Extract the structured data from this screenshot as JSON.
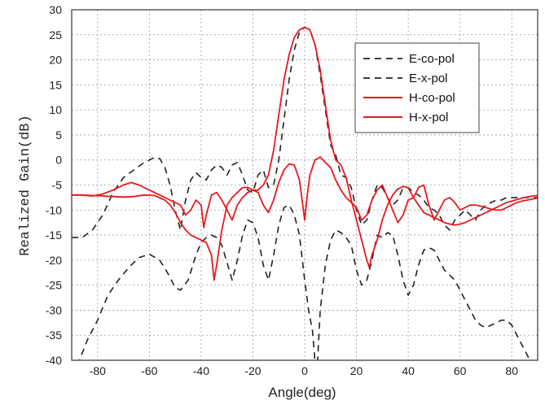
{
  "chart_data": {
    "type": "line",
    "title": "",
    "xlabel": "Angle(deg)",
    "ylabel": "Realized Gain(dB)",
    "xlim": [
      -90,
      90
    ],
    "ylim": [
      -40,
      30
    ],
    "xticks": [
      -80,
      -60,
      -40,
      -20,
      0,
      20,
      40,
      60,
      80
    ],
    "yticks": [
      30,
      25,
      20,
      15,
      10,
      5,
      0,
      -5,
      -10,
      -15,
      -20,
      -25,
      -30,
      -35,
      -40
    ],
    "grid": true,
    "legend_position": "top-right",
    "series": [
      {
        "name": "E-co-pol",
        "color": "#222222",
        "style": "dashed",
        "x": [
          -90,
          -86,
          -82,
          -78,
          -74,
          -70,
          -66,
          -62,
          -58,
          -56,
          -54,
          -52,
          -50,
          -48,
          -46,
          -44,
          -42,
          -40,
          -38,
          -36,
          -34,
          -32,
          -30,
          -28,
          -26,
          -24,
          -22,
          -20,
          -18,
          -16,
          -14,
          -12,
          -10,
          -8,
          -6,
          -4,
          -2,
          0,
          2,
          4,
          6,
          8,
          10,
          12,
          14,
          16,
          18,
          20,
          22,
          24,
          26,
          28,
          30,
          32,
          34,
          36,
          38,
          40,
          42,
          44,
          46,
          48,
          50,
          52,
          54,
          56,
          58,
          60,
          62,
          64,
          66,
          68,
          70,
          72,
          74,
          76,
          78,
          80,
          82,
          84,
          86,
          88,
          90
        ],
        "y": [
          -15.5,
          -15.5,
          -14,
          -11,
          -6.5,
          -3.5,
          -2,
          -0.5,
          0.5,
          0.3,
          -1.5,
          -5,
          -10,
          -14,
          -8,
          -4,
          -2.5,
          -3.5,
          -4,
          -2,
          -1,
          -1.5,
          -3,
          -1,
          -0.5,
          -3,
          -6,
          -6.5,
          -3,
          -2,
          -5.5,
          -5,
          0,
          8,
          16,
          22,
          25.5,
          26.5,
          26,
          23,
          17,
          10,
          3,
          1,
          -3,
          -3.5,
          -5.5,
          -10,
          -13,
          -12,
          -8,
          -5,
          -5.5,
          -7.5,
          -9,
          -8,
          -5.5,
          -5.5,
          -6.5,
          -7,
          -8,
          -9.5,
          -10,
          -11,
          -13,
          -14,
          -12,
          -11,
          -10,
          -11,
          -12,
          -10,
          -9,
          -8.5,
          -8,
          -8,
          -7.5,
          -7.5,
          -7.5,
          -7.5,
          -7.5,
          -7.5,
          -7.5
        ]
      },
      {
        "name": "E-x-pol",
        "color": "#222222",
        "style": "dashed",
        "x": [
          -90,
          -87,
          -84,
          -80,
          -76,
          -72,
          -68,
          -64,
          -60,
          -56,
          -53,
          -50,
          -48,
          -45,
          -42,
          -40,
          -38,
          -36,
          -34,
          -32,
          -30,
          -28,
          -26,
          -24,
          -22,
          -20,
          -18,
          -16,
          -14,
          -12,
          -10,
          -8,
          -6,
          -4,
          -2,
          0,
          1.5,
          3,
          3.8,
          4.2,
          5,
          6,
          8,
          10,
          12,
          14,
          16,
          18,
          20,
          22,
          24,
          26,
          28,
          30,
          32,
          34,
          36,
          38,
          40,
          42,
          44,
          46,
          48,
          50,
          52,
          54,
          56,
          58,
          60,
          62,
          64,
          66,
          68,
          70,
          72,
          74,
          76,
          78,
          80,
          82,
          84,
          86,
          88,
          90
        ],
        "y": [
          -43,
          -40,
          -36,
          -32,
          -27,
          -24,
          -21.5,
          -19.5,
          -18.8,
          -20,
          -22.5,
          -25.5,
          -26,
          -24,
          -19,
          -16.5,
          -15.5,
          -15,
          -15.5,
          -17,
          -20.5,
          -24,
          -20,
          -15,
          -12,
          -12.5,
          -15.5,
          -21,
          -24,
          -19,
          -13,
          -9.5,
          -9,
          -11,
          -15,
          -24,
          -30,
          -34,
          -39,
          -44,
          -40,
          -30,
          -21,
          -16,
          -14,
          -14.5,
          -15.5,
          -17,
          -22,
          -25,
          -24,
          -20,
          -15,
          -15.5,
          -14.5,
          -15,
          -19,
          -24,
          -27,
          -25,
          -21,
          -18,
          -17.5,
          -18,
          -20,
          -22,
          -23,
          -24,
          -26,
          -28,
          -30,
          -32,
          -33,
          -33.5,
          -33,
          -32.5,
          -32,
          -32,
          -33,
          -35,
          -37,
          -39,
          -41,
          -43
        ]
      },
      {
        "name": "H-co-pol",
        "color": "#e8191f",
        "style": "solid",
        "x": [
          -90,
          -86,
          -82,
          -78,
          -74,
          -70,
          -66,
          -62,
          -58,
          -54,
          -52,
          -50,
          -48,
          -46,
          -44,
          -42,
          -40,
          -38,
          -36,
          -35,
          -34,
          -32,
          -30,
          -28,
          -26,
          -24,
          -22,
          -20,
          -18,
          -16,
          -14,
          -12,
          -10,
          -8,
          -6,
          -4,
          -2,
          0,
          2,
          4,
          6,
          8,
          10,
          12,
          14,
          16,
          18,
          20,
          22,
          24,
          25,
          26,
          28,
          30,
          32,
          34,
          36,
          38,
          40,
          42,
          44,
          46,
          48,
          50,
          52,
          54,
          56,
          58,
          60,
          62,
          64,
          66,
          68,
          70,
          72,
          74,
          76,
          78,
          80,
          82,
          84,
          86,
          88,
          90
        ],
        "y": [
          -7,
          -7,
          -7.1,
          -7.2,
          -7.3,
          -7.4,
          -7.3,
          -7,
          -7.1,
          -8,
          -9,
          -10.5,
          -12.5,
          -14,
          -15,
          -15.5,
          -16,
          -16.5,
          -19,
          -24,
          -21,
          -14,
          -9,
          -7.5,
          -6.5,
          -5.5,
          -5.5,
          -6,
          -6,
          -5,
          -3,
          2,
          9,
          16,
          21,
          24.5,
          26,
          26.5,
          26,
          23,
          18,
          11,
          4,
          0,
          -1,
          -3.5,
          -8,
          -12,
          -16,
          -20,
          -21.5,
          -19,
          -16,
          -12,
          -9,
          -7,
          -5.8,
          -5.3,
          -5.5,
          -7.5,
          -9,
          -10.5,
          -11,
          -11.5,
          -12,
          -12.5,
          -12.8,
          -13,
          -12.8,
          -12.5,
          -12,
          -11.5,
          -11,
          -10.5,
          -10,
          -9.5,
          -9,
          -8.5,
          -8.2,
          -7.9,
          -7.6,
          -7.4,
          -7.2,
          -7.1
        ]
      },
      {
        "name": "H-x-pol",
        "color": "#e8191f",
        "style": "solid",
        "x": [
          -90,
          -86,
          -82,
          -78,
          -74,
          -70,
          -67,
          -64,
          -60,
          -56,
          -52,
          -48,
          -46,
          -44,
          -42,
          -40,
          -39,
          -38,
          -36,
          -34,
          -32,
          -30,
          -28,
          -26,
          -24,
          -22,
          -20,
          -18,
          -16,
          -14,
          -12,
          -10,
          -8,
          -6,
          -4,
          -2,
          -1,
          0,
          1,
          2,
          4,
          6,
          8,
          10,
          12,
          14,
          16,
          18,
          20,
          22,
          24,
          26,
          28,
          30,
          32,
          34,
          36,
          38,
          40,
          42,
          44,
          46,
          48,
          50,
          52,
          54,
          56,
          58,
          60,
          62,
          64,
          66,
          68,
          70,
          72,
          74,
          76,
          78,
          80,
          82,
          84,
          86,
          88,
          90
        ],
        "y": [
          -7,
          -7,
          -7.2,
          -6.8,
          -6,
          -5,
          -4.5,
          -5,
          -6,
          -7,
          -8,
          -9,
          -11,
          -10,
          -8,
          -9,
          -13.5,
          -11,
          -7,
          -6.5,
          -8,
          -10,
          -12,
          -9,
          -7.5,
          -6.5,
          -6,
          -6.5,
          -9,
          -10.5,
          -8,
          -4.5,
          -2,
          -0.8,
          -1,
          -4,
          -8,
          -12,
          -7,
          -3,
          0,
          0.6,
          -0.5,
          -1.5,
          -4,
          -6,
          -7.5,
          -8.5,
          -9.5,
          -12,
          -11,
          -8,
          -6,
          -5,
          -7.5,
          -10,
          -12.5,
          -11,
          -8,
          -7.5,
          -5.5,
          -5,
          -9,
          -12,
          -10,
          -8,
          -7.5,
          -8.5,
          -10,
          -9.5,
          -9,
          -9,
          -9.2,
          -9.5,
          -9.8,
          -10,
          -10,
          -9.5,
          -9,
          -8.5,
          -8.2,
          -8,
          -7.8,
          -7.6
        ]
      }
    ]
  }
}
